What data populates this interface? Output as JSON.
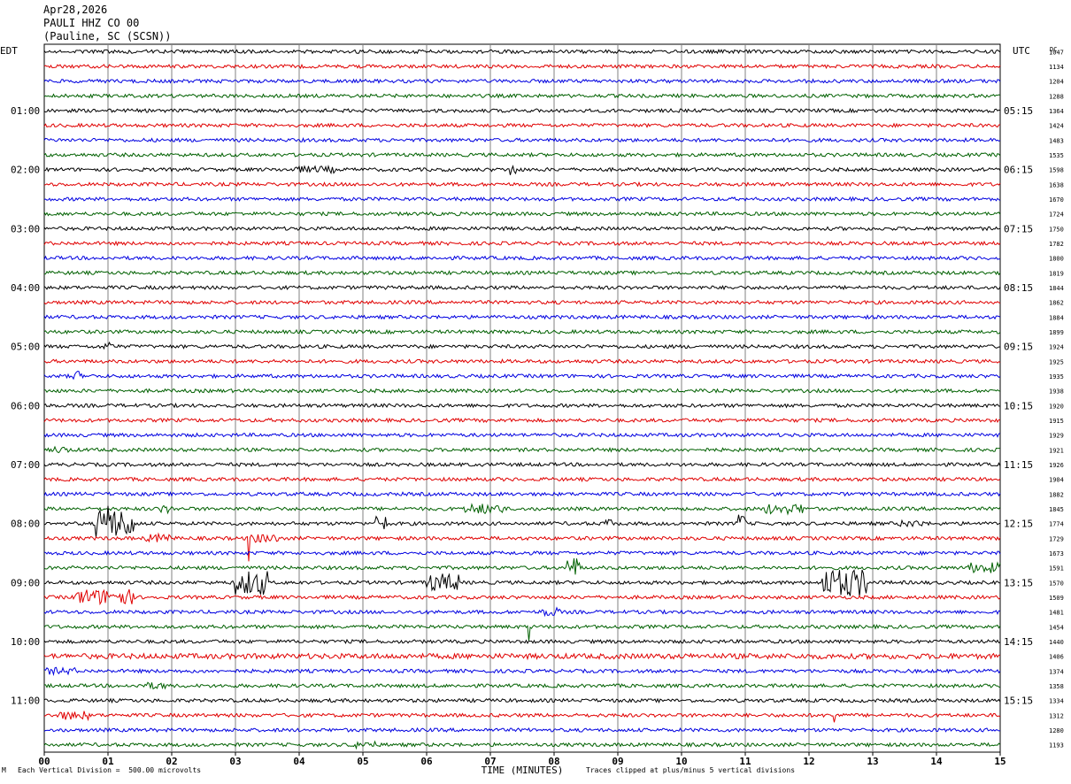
{
  "header": {
    "date": "Apr28,2026",
    "station": "PAULI HHZ CO 00",
    "location": "(Pauline, SC (SCSN))"
  },
  "chart_data": {
    "type": "line",
    "left_timezone": "EDT",
    "right_timezone": "UTC",
    "dc_label": "DC",
    "x_label": "TIME (MINUTES)",
    "x_ticks": [
      "00",
      "01",
      "02",
      "03",
      "04",
      "05",
      "06",
      "07",
      "08",
      "09",
      "10",
      "11",
      "12",
      "13",
      "14",
      "15"
    ],
    "x_range": [
      0,
      15
    ],
    "trace_colors": [
      "#000000",
      "#e00000",
      "#0000e0",
      "#006000"
    ],
    "left_hour_labels": [
      "01:00",
      "02:00",
      "03:00",
      "04:00",
      "05:00",
      "06:00",
      "07:00",
      "08:00",
      "09:00",
      "10:00",
      "11:00"
    ],
    "right_hour_labels": [
      "05:15",
      "06:15",
      "07:15",
      "08:15",
      "09:15",
      "10:15",
      "11:15",
      "12:15",
      "13:15",
      "14:15",
      "15:15"
    ],
    "dc_offsets": [
      "1047",
      "1134",
      "1204",
      "1288",
      "1364",
      "1424",
      "1483",
      "1535",
      "1598",
      "1638",
      "1670",
      "1724",
      "1750",
      "1782",
      "1800",
      "1819",
      "1844",
      "1862",
      "1884",
      "1899",
      "1924",
      "1925",
      "1935",
      "1938",
      "1920",
      "1915",
      "1929",
      "1921",
      "1926",
      "1904",
      "1882",
      "1845",
      "1774",
      "1729",
      "1673",
      "1591",
      "1570",
      "1509",
      "1481",
      "1454",
      "1440",
      "1406",
      "1374",
      "1358",
      "1334",
      "1312",
      "1280",
      "1193"
    ],
    "grid": true
  },
  "footer": {
    "scale_note": "Each Vertical Division =  500.00 microvolts",
    "clip_note": "Traces clipped at plus/minus 5 vertical divisions",
    "mark": "M"
  }
}
